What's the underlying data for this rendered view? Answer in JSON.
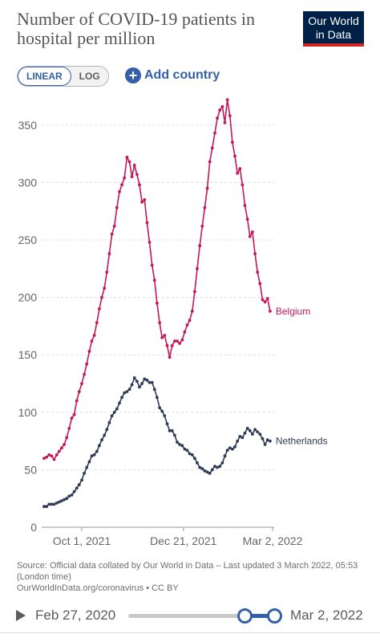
{
  "header": {
    "title": "Number of COVID-19 patients in hospital per million",
    "logo_line1": "Our World",
    "logo_line2": "in Data"
  },
  "controls": {
    "linear_label": "LINEAR",
    "log_label": "LOG",
    "add_country_label": "Add country"
  },
  "source_text": "Source: Official data collated by Our World in Data – Last updated 3 March 2022, 05:53 (London time)",
  "license_text": "OurWorldInData.org/coronavirus • CC BY",
  "timeline": {
    "start_label": "Feb 27, 2020",
    "end_label": "Mar 2, 2022",
    "selection_start": "2021-09-01",
    "selection_end": "2022-03-02"
  },
  "chart_data": {
    "type": "line",
    "x_start": "2021-09-01",
    "x_end": "2022-03-02",
    "xticks": [
      {
        "date": "2021-10-01",
        "label": "Oct 1, 2021"
      },
      {
        "date": "2021-12-21",
        "label": "Dec 21, 2021"
      },
      {
        "date": "2022-03-02",
        "label": "Mar 2, 2022"
      }
    ],
    "ylim": [
      0,
      375
    ],
    "yticks": [
      0,
      50,
      100,
      150,
      200,
      250,
      300,
      350
    ],
    "grid": "horizontal dashed",
    "series": [
      {
        "name": "Belgium",
        "color": "#c2185b",
        "points": [
          [
            "2021-09-01",
            60
          ],
          [
            "2021-09-03",
            61
          ],
          [
            "2021-09-05",
            63
          ],
          [
            "2021-09-07",
            62
          ],
          [
            "2021-09-09",
            59
          ],
          [
            "2021-09-11",
            63
          ],
          [
            "2021-09-13",
            66
          ],
          [
            "2021-09-15",
            69
          ],
          [
            "2021-09-17",
            72
          ],
          [
            "2021-09-19",
            78
          ],
          [
            "2021-09-21",
            86
          ],
          [
            "2021-09-23",
            95
          ],
          [
            "2021-09-25",
            98
          ],
          [
            "2021-09-27",
            110
          ],
          [
            "2021-09-29",
            118
          ],
          [
            "2021-10-01",
            125
          ],
          [
            "2021-10-03",
            133
          ],
          [
            "2021-10-05",
            142
          ],
          [
            "2021-10-07",
            153
          ],
          [
            "2021-10-09",
            162
          ],
          [
            "2021-10-11",
            167
          ],
          [
            "2021-10-13",
            178
          ],
          [
            "2021-10-15",
            190
          ],
          [
            "2021-10-17",
            200
          ],
          [
            "2021-10-19",
            208
          ],
          [
            "2021-10-21",
            222
          ],
          [
            "2021-10-23",
            238
          ],
          [
            "2021-10-25",
            255
          ],
          [
            "2021-10-27",
            262
          ],
          [
            "2021-10-29",
            278
          ],
          [
            "2021-10-31",
            292
          ],
          [
            "2021-11-02",
            298
          ],
          [
            "2021-11-04",
            304
          ],
          [
            "2021-11-06",
            322
          ],
          [
            "2021-11-08",
            318
          ],
          [
            "2021-11-10",
            305
          ],
          [
            "2021-11-12",
            315
          ],
          [
            "2021-11-14",
            307
          ],
          [
            "2021-11-16",
            298
          ],
          [
            "2021-11-18",
            283
          ],
          [
            "2021-11-20",
            285
          ],
          [
            "2021-11-22",
            265
          ],
          [
            "2021-11-24",
            248
          ],
          [
            "2021-11-26",
            228
          ],
          [
            "2021-11-28",
            215
          ],
          [
            "2021-11-30",
            195
          ],
          [
            "2021-12-02",
            178
          ],
          [
            "2021-12-04",
            165
          ],
          [
            "2021-12-06",
            167
          ],
          [
            "2021-12-08",
            158
          ],
          [
            "2021-12-10",
            148
          ],
          [
            "2021-12-12",
            158
          ],
          [
            "2021-12-14",
            162
          ],
          [
            "2021-12-16",
            162
          ],
          [
            "2021-12-18",
            160
          ],
          [
            "2021-12-20",
            163
          ],
          [
            "2021-12-22",
            170
          ],
          [
            "2021-12-24",
            176
          ],
          [
            "2021-12-26",
            180
          ],
          [
            "2021-12-28",
            188
          ],
          [
            "2021-12-30",
            205
          ],
          [
            "2022-01-01",
            225
          ],
          [
            "2022-01-03",
            245
          ],
          [
            "2022-01-05",
            262
          ],
          [
            "2022-01-07",
            278
          ],
          [
            "2022-01-09",
            295
          ],
          [
            "2022-01-11",
            318
          ],
          [
            "2022-01-13",
            330
          ],
          [
            "2022-01-15",
            343
          ],
          [
            "2022-01-17",
            356
          ],
          [
            "2022-01-19",
            363
          ],
          [
            "2022-01-21",
            366
          ],
          [
            "2022-01-23",
            352
          ],
          [
            "2022-01-25",
            372
          ],
          [
            "2022-01-27",
            358
          ],
          [
            "2022-01-29",
            335
          ],
          [
            "2022-01-31",
            323
          ],
          [
            "2022-02-02",
            308
          ],
          [
            "2022-02-04",
            312
          ],
          [
            "2022-02-06",
            298
          ],
          [
            "2022-02-08",
            280
          ],
          [
            "2022-02-10",
            268
          ],
          [
            "2022-02-12",
            253
          ],
          [
            "2022-02-14",
            257
          ],
          [
            "2022-02-16",
            238
          ],
          [
            "2022-02-18",
            222
          ],
          [
            "2022-02-20",
            212
          ],
          [
            "2022-02-22",
            198
          ],
          [
            "2022-02-24",
            196
          ],
          [
            "2022-02-26",
            199
          ],
          [
            "2022-02-28",
            188
          ]
        ]
      },
      {
        "name": "Netherlands",
        "color": "#2d3b55",
        "points": [
          [
            "2021-09-01",
            18
          ],
          [
            "2021-09-03",
            18
          ],
          [
            "2021-09-05",
            20
          ],
          [
            "2021-09-07",
            20
          ],
          [
            "2021-09-09",
            20
          ],
          [
            "2021-09-11",
            21
          ],
          [
            "2021-09-13",
            22
          ],
          [
            "2021-09-15",
            23
          ],
          [
            "2021-09-17",
            24
          ],
          [
            "2021-09-19",
            25
          ],
          [
            "2021-09-21",
            27
          ],
          [
            "2021-09-23",
            28
          ],
          [
            "2021-09-25",
            31
          ],
          [
            "2021-09-27",
            34
          ],
          [
            "2021-09-29",
            37
          ],
          [
            "2021-10-01",
            41
          ],
          [
            "2021-10-03",
            47
          ],
          [
            "2021-10-05",
            52
          ],
          [
            "2021-10-07",
            57
          ],
          [
            "2021-10-09",
            62
          ],
          [
            "2021-10-11",
            63
          ],
          [
            "2021-10-13",
            66
          ],
          [
            "2021-10-15",
            71
          ],
          [
            "2021-10-17",
            76
          ],
          [
            "2021-10-19",
            80
          ],
          [
            "2021-10-21",
            85
          ],
          [
            "2021-10-23",
            91
          ],
          [
            "2021-10-25",
            97
          ],
          [
            "2021-10-27",
            100
          ],
          [
            "2021-10-29",
            103
          ],
          [
            "2021-10-31",
            108
          ],
          [
            "2021-11-02",
            113
          ],
          [
            "2021-11-04",
            117
          ],
          [
            "2021-11-06",
            118
          ],
          [
            "2021-11-08",
            120
          ],
          [
            "2021-11-10",
            124
          ],
          [
            "2021-11-12",
            130
          ],
          [
            "2021-11-14",
            127
          ],
          [
            "2021-11-16",
            122
          ],
          [
            "2021-11-18",
            125
          ],
          [
            "2021-11-20",
            129
          ],
          [
            "2021-11-22",
            128
          ],
          [
            "2021-11-24",
            126
          ],
          [
            "2021-11-26",
            126
          ],
          [
            "2021-11-28",
            120
          ],
          [
            "2021-11-30",
            113
          ],
          [
            "2021-12-02",
            104
          ],
          [
            "2021-12-04",
            101
          ],
          [
            "2021-12-06",
            97
          ],
          [
            "2021-12-08",
            90
          ],
          [
            "2021-12-10",
            84
          ],
          [
            "2021-12-12",
            84
          ],
          [
            "2021-12-14",
            80
          ],
          [
            "2021-12-16",
            74
          ],
          [
            "2021-12-18",
            72
          ],
          [
            "2021-12-20",
            71
          ],
          [
            "2021-12-22",
            68
          ],
          [
            "2021-12-24",
            67
          ],
          [
            "2021-12-26",
            64
          ],
          [
            "2021-12-28",
            63
          ],
          [
            "2021-12-30",
            60
          ],
          [
            "2022-01-01",
            56
          ],
          [
            "2022-01-03",
            52
          ],
          [
            "2022-01-05",
            51
          ],
          [
            "2022-01-07",
            49
          ],
          [
            "2022-01-09",
            48
          ],
          [
            "2022-01-11",
            47
          ],
          [
            "2022-01-13",
            50
          ],
          [
            "2022-01-15",
            53
          ],
          [
            "2022-01-17",
            52
          ],
          [
            "2022-01-19",
            53
          ],
          [
            "2022-01-21",
            56
          ],
          [
            "2022-01-23",
            62
          ],
          [
            "2022-01-25",
            67
          ],
          [
            "2022-01-27",
            69
          ],
          [
            "2022-01-29",
            68
          ],
          [
            "2022-01-31",
            70
          ],
          [
            "2022-02-02",
            75
          ],
          [
            "2022-02-04",
            79
          ],
          [
            "2022-02-06",
            78
          ],
          [
            "2022-02-08",
            82
          ],
          [
            "2022-02-10",
            86
          ],
          [
            "2022-02-12",
            84
          ],
          [
            "2022-02-14",
            81
          ],
          [
            "2022-02-16",
            85
          ],
          [
            "2022-02-18",
            83
          ],
          [
            "2022-02-20",
            81
          ],
          [
            "2022-02-22",
            77
          ],
          [
            "2022-02-24",
            72
          ],
          [
            "2022-02-26",
            76
          ],
          [
            "2022-02-28",
            75
          ]
        ]
      }
    ]
  }
}
